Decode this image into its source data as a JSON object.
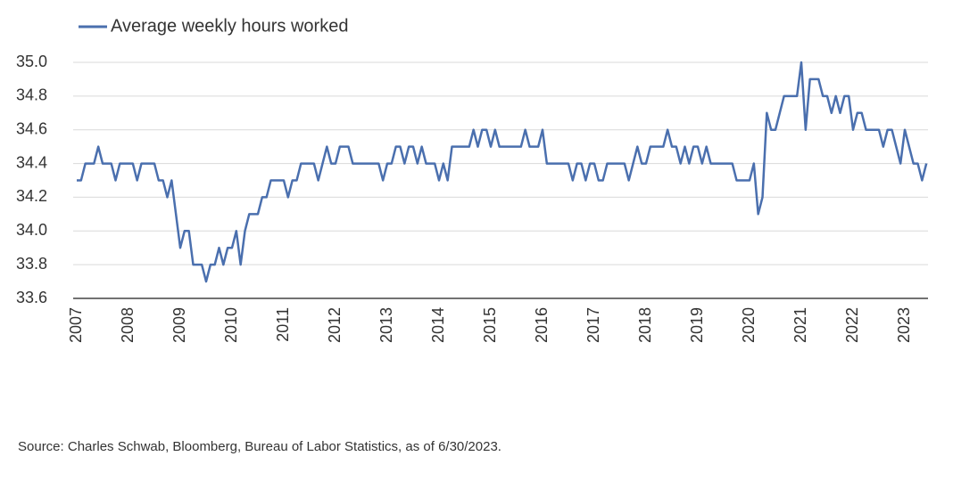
{
  "chart_data": {
    "type": "line",
    "source": "Source: Charles Schwab, Bloomberg, Bureau of Labor Statistics, as of 6/30/2023.",
    "categories": [
      "2007",
      null,
      null,
      null,
      null,
      null,
      null,
      null,
      null,
      null,
      null,
      null,
      "2008",
      null,
      null,
      null,
      null,
      null,
      null,
      null,
      null,
      null,
      null,
      null,
      "2009",
      null,
      null,
      null,
      null,
      null,
      null,
      null,
      null,
      null,
      null,
      null,
      "2010",
      null,
      null,
      null,
      null,
      null,
      null,
      null,
      null,
      null,
      null,
      null,
      "2011",
      null,
      null,
      null,
      null,
      null,
      null,
      null,
      null,
      null,
      null,
      null,
      "2012",
      null,
      null,
      null,
      null,
      null,
      null,
      null,
      null,
      null,
      null,
      null,
      "2013",
      null,
      null,
      null,
      null,
      null,
      null,
      null,
      null,
      null,
      null,
      null,
      "2014",
      null,
      null,
      null,
      null,
      null,
      null,
      null,
      null,
      null,
      null,
      null,
      "2015",
      null,
      null,
      null,
      null,
      null,
      null,
      null,
      null,
      null,
      null,
      null,
      "2016",
      null,
      null,
      null,
      null,
      null,
      null,
      null,
      null,
      null,
      null,
      null,
      "2017",
      null,
      null,
      null,
      null,
      null,
      null,
      null,
      null,
      null,
      null,
      null,
      "2018",
      null,
      null,
      null,
      null,
      null,
      null,
      null,
      null,
      null,
      null,
      null,
      "2019",
      null,
      null,
      null,
      null,
      null,
      null,
      null,
      null,
      null,
      null,
      null,
      "2020",
      null,
      null,
      null,
      null,
      null,
      null,
      null,
      null,
      null,
      null,
      null,
      "2021",
      null,
      null,
      null,
      null,
      null,
      null,
      null,
      null,
      null,
      null,
      null,
      "2022",
      null,
      null,
      null,
      null,
      null,
      null,
      null,
      null,
      null,
      null,
      null,
      "2023",
      null,
      null,
      null,
      null,
      null
    ],
    "series": [
      {
        "name": "Average weekly hours worked",
        "color": "#4a6fae",
        "values": [
          34.3,
          34.3,
          34.4,
          34.4,
          34.4,
          34.5,
          34.4,
          34.4,
          34.4,
          34.3,
          34.4,
          34.4,
          34.4,
          34.4,
          34.3,
          34.4,
          34.4,
          34.4,
          34.4,
          34.3,
          34.3,
          34.2,
          34.3,
          34.1,
          33.9,
          34.0,
          34.0,
          33.8,
          33.8,
          33.8,
          33.7,
          33.8,
          33.8,
          33.9,
          33.8,
          33.9,
          33.9,
          34.0,
          33.8,
          34.0,
          34.1,
          34.1,
          34.1,
          34.2,
          34.2,
          34.3,
          34.3,
          34.3,
          34.3,
          34.2,
          34.3,
          34.3,
          34.4,
          34.4,
          34.4,
          34.4,
          34.3,
          34.4,
          34.5,
          34.4,
          34.4,
          34.5,
          34.5,
          34.5,
          34.4,
          34.4,
          34.4,
          34.4,
          34.4,
          34.4,
          34.4,
          34.3,
          34.4,
          34.4,
          34.5,
          34.5,
          34.4,
          34.5,
          34.5,
          34.4,
          34.5,
          34.4,
          34.4,
          34.4,
          34.3,
          34.4,
          34.3,
          34.5,
          34.5,
          34.5,
          34.5,
          34.5,
          34.6,
          34.5,
          34.6,
          34.6,
          34.5,
          34.6,
          34.5,
          34.5,
          34.5,
          34.5,
          34.5,
          34.5,
          34.6,
          34.5,
          34.5,
          34.5,
          34.6,
          34.4,
          34.4,
          34.4,
          34.4,
          34.4,
          34.4,
          34.3,
          34.4,
          34.4,
          34.3,
          34.4,
          34.4,
          34.3,
          34.3,
          34.4,
          34.4,
          34.4,
          34.4,
          34.4,
          34.3,
          34.4,
          34.5,
          34.4,
          34.4,
          34.5,
          34.5,
          34.5,
          34.5,
          34.6,
          34.5,
          34.5,
          34.4,
          34.5,
          34.4,
          34.5,
          34.5,
          34.4,
          34.5,
          34.4,
          34.4,
          34.4,
          34.4,
          34.4,
          34.4,
          34.3,
          34.3,
          34.3,
          34.3,
          34.4,
          34.1,
          34.2,
          34.7,
          34.6,
          34.6,
          34.7,
          34.8,
          34.8,
          34.8,
          34.8,
          35.0,
          34.6,
          34.9,
          34.9,
          34.9,
          34.8,
          34.8,
          34.7,
          34.8,
          34.7,
          34.8,
          34.8,
          34.6,
          34.7,
          34.7,
          34.6,
          34.6,
          34.6,
          34.6,
          34.5,
          34.6,
          34.6,
          34.5,
          34.4,
          34.6,
          34.5,
          34.4,
          34.4,
          34.3,
          34.4
        ]
      }
    ],
    "ylim": [
      33.6,
      35.0
    ],
    "yticks": [
      33.6,
      33.8,
      {
        "value": 34.0,
        "label": "34.0"
      },
      34.2,
      34.4,
      34.6,
      34.8,
      {
        "value": 35.0,
        "label": "35.0"
      }
    ],
    "grid": true
  }
}
